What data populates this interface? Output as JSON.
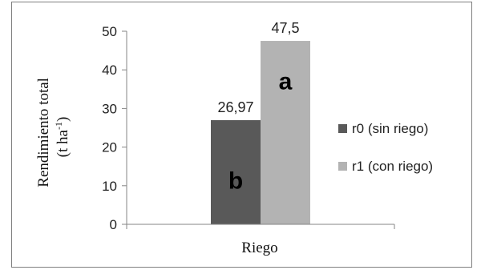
{
  "chart_data": {
    "type": "bar",
    "categories": [
      "Riego"
    ],
    "series": [
      {
        "name": "r0 (sin riego)",
        "values": [
          26.97
        ],
        "value_label": "26,97",
        "significance_letter": "b",
        "color": "#595959"
      },
      {
        "name": "r1 (con riego)",
        "values": [
          47.5
        ],
        "value_label": "47,5",
        "significance_letter": "a",
        "color": "#b3b3b3"
      }
    ],
    "title": "",
    "xlabel": "Riego",
    "ylabel": "Rendimiento total",
    "ylabel_unit": "(t ha",
    "ylabel_unit_sup": "-1",
    "ylabel_unit_close": ")",
    "ylim": [
      0,
      50
    ],
    "yticks": [
      0,
      10,
      20,
      30,
      40,
      50
    ],
    "grid": false,
    "legend_position": "right"
  }
}
